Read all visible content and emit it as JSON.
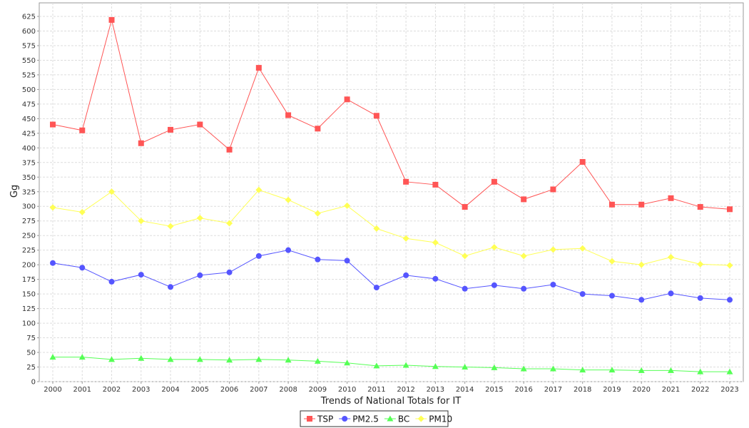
{
  "chart_data": {
    "type": "line",
    "title": "",
    "xlabel": "Trends of National Totals for IT",
    "ylabel": "Gg",
    "ylim": [
      0,
      640
    ],
    "yticks": [
      0,
      25,
      50,
      75,
      100,
      125,
      150,
      175,
      200,
      225,
      250,
      275,
      300,
      325,
      350,
      375,
      400,
      425,
      450,
      475,
      500,
      525,
      550,
      575,
      600,
      625
    ],
    "grid": true,
    "legend_position": "bottom",
    "categories": [
      "2000",
      "2001",
      "2002",
      "2003",
      "2004",
      "2005",
      "2006",
      "2007",
      "2008",
      "2009",
      "2010",
      "2011",
      "2012",
      "2013",
      "2014",
      "2015",
      "2016",
      "2017",
      "2018",
      "2019",
      "2020",
      "2021",
      "2022",
      "2023"
    ],
    "series": [
      {
        "name": "TSP",
        "color": "#ff5555",
        "marker": "square",
        "values": [
          440,
          430,
          619,
          408,
          431,
          440,
          397,
          537,
          456,
          433,
          483,
          455,
          342,
          337,
          299,
          342,
          312,
          329,
          376,
          303,
          303,
          314,
          299,
          295
        ]
      },
      {
        "name": "PM2.5",
        "color": "#5555ff",
        "marker": "circle",
        "values": [
          203,
          195,
          171,
          183,
          162,
          182,
          187,
          215,
          225,
          209,
          207,
          161,
          182,
          176,
          159,
          165,
          159,
          166,
          150,
          147,
          140,
          151,
          143,
          140
        ]
      },
      {
        "name": "BC",
        "color": "#55ff55",
        "marker": "triangle",
        "values": [
          42,
          42,
          38,
          40,
          38,
          38,
          37,
          38,
          37,
          35,
          32,
          27,
          28,
          26,
          25,
          24,
          22,
          22,
          20,
          20,
          19,
          19,
          17,
          17
        ]
      },
      {
        "name": "PM10",
        "color": "#ffff55",
        "marker": "diamond",
        "values": [
          298,
          290,
          325,
          275,
          266,
          280,
          271,
          328,
          311,
          288,
          301,
          262,
          245,
          238,
          215,
          230,
          215,
          226,
          228,
          206,
          200,
          213,
          201,
          199
        ]
      }
    ]
  }
}
